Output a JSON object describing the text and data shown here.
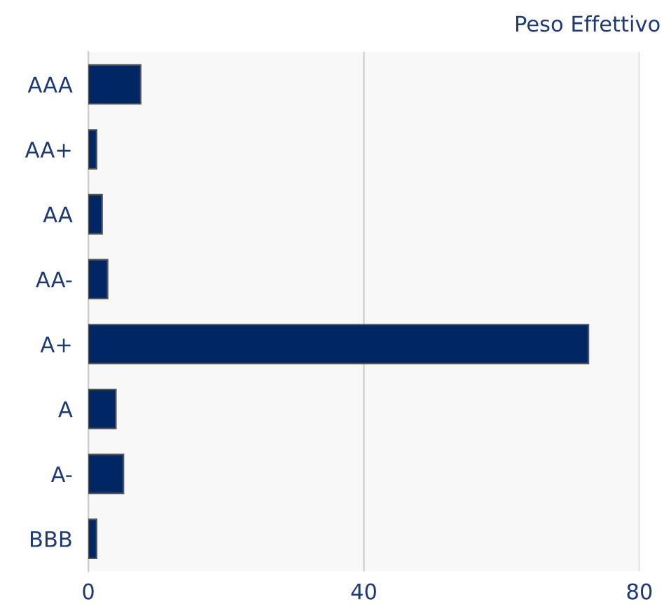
{
  "chart_data": {
    "type": "bar",
    "orientation": "horizontal",
    "title": "Peso Effettivo",
    "categories": [
      "AAA",
      "AA+",
      "AA",
      "AA-",
      "A+",
      "A",
      "A-",
      "BBB"
    ],
    "values": [
      7.6,
      1.2,
      2.0,
      2.8,
      72.6,
      4.0,
      5.1,
      1.2
    ],
    "color": "#002663",
    "xlim": [
      0,
      80
    ],
    "xticks": [
      0,
      40,
      80
    ],
    "grid": "x"
  }
}
